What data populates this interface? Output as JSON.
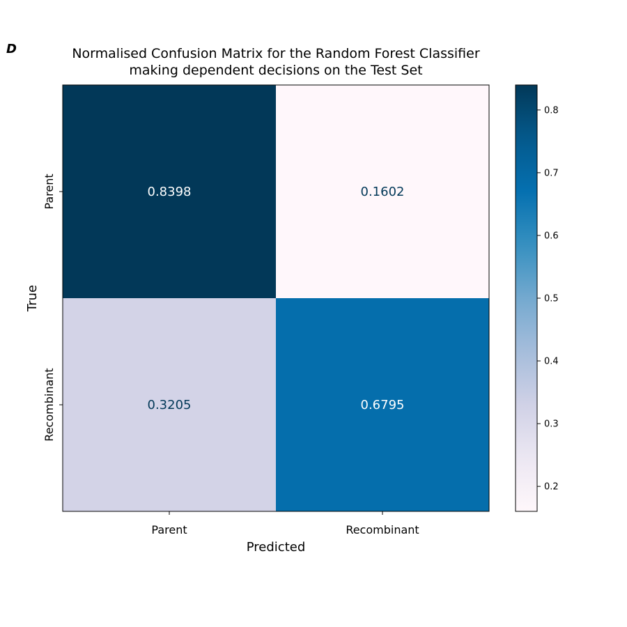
{
  "panel_label": "D",
  "chart_data": {
    "type": "heatmap",
    "title_lines": [
      "Normalised Confusion Matrix for the Random Forest Classifier",
      "making dependent decisions on the Test Set"
    ],
    "xlabel": "Predicted",
    "ylabel": "True",
    "x_categories": [
      "Parent",
      "Recombinant"
    ],
    "y_categories": [
      "Parent",
      "Recombinant"
    ],
    "matrix": [
      [
        0.8398,
        0.1602
      ],
      [
        0.3205,
        0.6795
      ]
    ],
    "colormap": "PuBu",
    "color_range": [
      0.1602,
      0.8398
    ],
    "colorbar_ticks": [
      0.2,
      0.3,
      0.4,
      0.5,
      0.6,
      0.7,
      0.8
    ],
    "colorbar_tick_labels": [
      "0.2",
      "0.3",
      "0.4",
      "0.5",
      "0.6",
      "0.7",
      "0.8"
    ],
    "cell_label_colors": {
      "dark_cell": "#ffffff",
      "light_cell": "#023858"
    }
  }
}
